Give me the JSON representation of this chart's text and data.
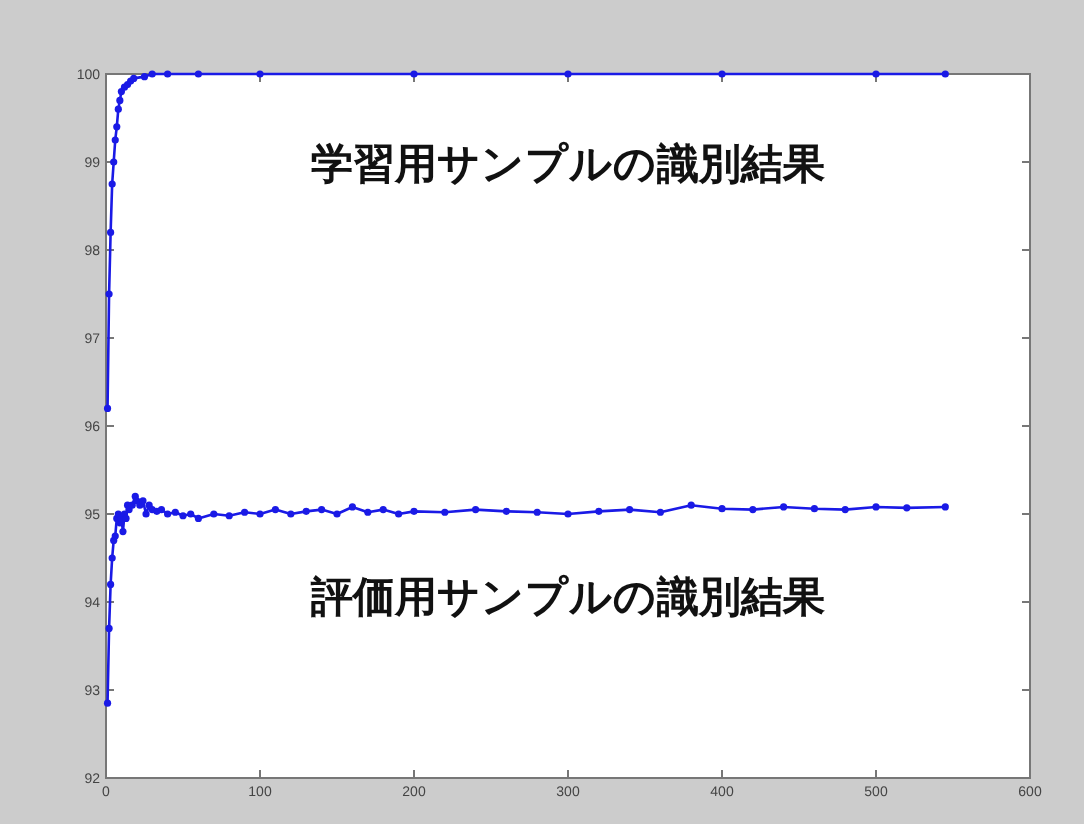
{
  "chart_data": {
    "type": "line",
    "xlim": [
      0,
      600
    ],
    "ylim": [
      92,
      100
    ],
    "xticks": [
      0,
      100,
      200,
      300,
      400,
      500,
      600
    ],
    "yticks": [
      92,
      93,
      94,
      95,
      96,
      97,
      98,
      99,
      100
    ],
    "marker": "circle",
    "grid": false,
    "series": [
      {
        "name": "学習用サンプルの識別結果",
        "color": "#1a1ae6",
        "x": [
          1,
          2,
          3,
          4,
          5,
          6,
          7,
          8,
          9,
          10,
          12,
          14,
          16,
          18,
          25,
          30,
          40,
          60,
          100,
          200,
          300,
          400,
          500,
          545
        ],
        "values": [
          96.2,
          97.5,
          98.2,
          98.75,
          99.0,
          99.25,
          99.4,
          99.6,
          99.7,
          99.8,
          99.85,
          99.88,
          99.92,
          99.95,
          99.97,
          100,
          100,
          100,
          100,
          100,
          100,
          100,
          100,
          100
        ]
      },
      {
        "name": "評価用サンプルの識別結果",
        "color": "#1a1ae6",
        "x": [
          1,
          2,
          3,
          4,
          5,
          6,
          7,
          8,
          9,
          10,
          11,
          12,
          13,
          14,
          15,
          17,
          19,
          20,
          22,
          24,
          26,
          28,
          30,
          33,
          36,
          40,
          45,
          50,
          55,
          60,
          70,
          80,
          90,
          100,
          110,
          120,
          130,
          140,
          150,
          160,
          170,
          180,
          190,
          200,
          220,
          240,
          260,
          280,
          300,
          320,
          340,
          360,
          380,
          400,
          420,
          440,
          460,
          480,
          500,
          520,
          545
        ],
        "values": [
          92.85,
          93.7,
          94.2,
          94.5,
          94.7,
          94.75,
          94.95,
          95.0,
          94.9,
          94.95,
          94.8,
          95.0,
          94.95,
          95.1,
          95.05,
          95.1,
          95.2,
          95.15,
          95.1,
          95.15,
          95.0,
          95.1,
          95.05,
          95.03,
          95.05,
          95.0,
          95.02,
          94.98,
          95.0,
          94.95,
          95.0,
          94.98,
          95.02,
          95.0,
          95.05,
          95.0,
          95.03,
          95.05,
          95.0,
          95.08,
          95.02,
          95.05,
          95.0,
          95.03,
          95.02,
          95.05,
          95.03,
          95.02,
          95.0,
          95.03,
          95.05,
          95.02,
          95.1,
          95.06,
          95.05,
          95.08,
          95.06,
          95.05,
          95.08,
          95.07,
          95.08
        ]
      }
    ]
  }
}
